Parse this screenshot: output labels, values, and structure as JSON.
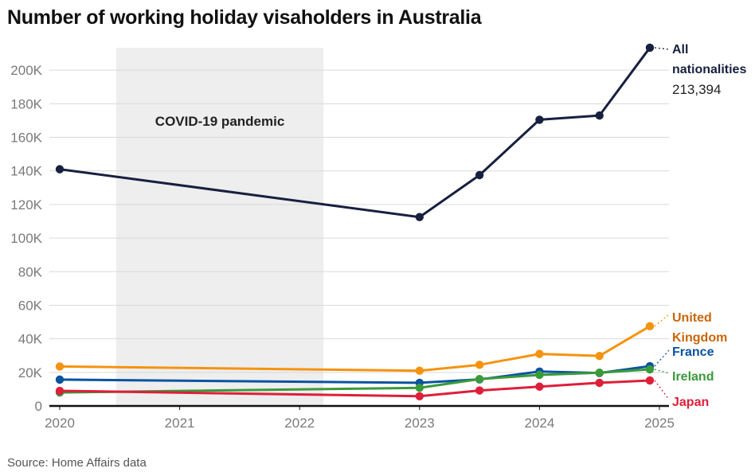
{
  "title": "Number of working holiday visaholders in Australia",
  "source": "Source: Home Affairs data",
  "chart_data": {
    "type": "line",
    "title": "Number of working holiday visaholders in Australia",
    "xlabel": "",
    "ylabel": "",
    "xlim": [
      2020,
      2025
    ],
    "ylim": [
      0,
      220000
    ],
    "x_ticks": [
      2020,
      2021,
      2022,
      2023,
      2024,
      2025
    ],
    "x_tick_labels": [
      "2020",
      "2021",
      "2022",
      "2023",
      "2024",
      "2025"
    ],
    "y_ticks": [
      0,
      20000,
      40000,
      60000,
      80000,
      100000,
      120000,
      140000,
      160000,
      180000,
      200000
    ],
    "y_tick_labels": [
      "0",
      "20K",
      "40K",
      "60K",
      "80K",
      "100K",
      "120K",
      "140K",
      "160K",
      "180K",
      "200K"
    ],
    "grid": "horizontal",
    "annotation": {
      "label": "COVID-19 pandemic",
      "x_start": 2020.47,
      "x_end": 2022.2,
      "color": "#eeeeee"
    },
    "series": [
      {
        "name": "All nationalities",
        "label_lines": [
          "All",
          "nationalities"
        ],
        "value_label": "213,394",
        "color": "#17203f",
        "x": [
          2020,
          2023,
          2023.5,
          2024,
          2024.5,
          2024.92
        ],
        "y": [
          141000,
          112500,
          137500,
          170500,
          173000,
          213394
        ]
      },
      {
        "name": "United Kingdom",
        "label_lines": [
          "United",
          "Kingdom"
        ],
        "color": "#f5930f",
        "label_color": "#c8660a",
        "x": [
          2020,
          2023,
          2023.5,
          2024,
          2024.5,
          2024.92
        ],
        "y": [
          23500,
          21000,
          24500,
          31000,
          29800,
          47500
        ]
      },
      {
        "name": "France",
        "label_lines": [
          "France"
        ],
        "color": "#0a53a0",
        "label_color": "#0a53a0",
        "x": [
          2020,
          2023,
          2023.5,
          2024,
          2024.5,
          2024.92
        ],
        "y": [
          15700,
          13800,
          15800,
          20500,
          19600,
          23700
        ]
      },
      {
        "name": "Ireland",
        "label_lines": [
          "Ireland"
        ],
        "color": "#3a9a3a",
        "label_color": "#3a9a3a",
        "x": [
          2020,
          2023,
          2023.5,
          2024,
          2024.5,
          2024.92
        ],
        "y": [
          8000,
          10800,
          16000,
          18500,
          19800,
          21800
        ]
      },
      {
        "name": "Japan",
        "label_lines": [
          "Japan"
        ],
        "color": "#de1f3a",
        "label_color": "#de1f3a",
        "x": [
          2020,
          2023,
          2023.5,
          2024,
          2024.5,
          2024.92
        ],
        "y": [
          9000,
          5800,
          9200,
          11500,
          13800,
          15200
        ]
      }
    ]
  }
}
